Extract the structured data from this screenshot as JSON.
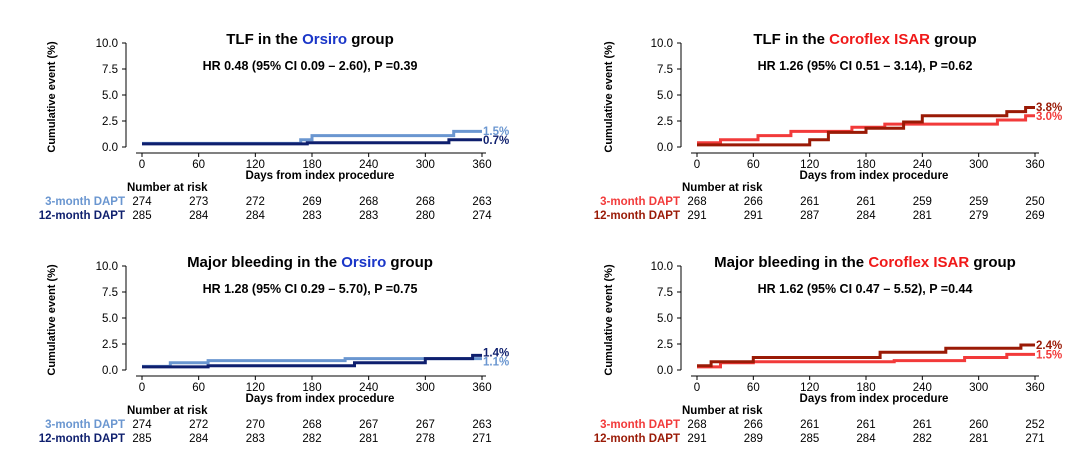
{
  "colors": {
    "orsiro_3m": "#6a96d0",
    "orsiro_12m": "#0e1f6e",
    "orsiro_word": "#1a36c8",
    "coroflex_3m": "#f23a3a",
    "coroflex_12m": "#9a1a06",
    "coroflex_word": "#f01818"
  },
  "shared": {
    "ylabel": "Cumulative event (%)",
    "xlabel": "Days from index procedure",
    "risk_header": "Number at risk",
    "label_3m": "3-month DAPT",
    "label_12m": "12-month DAPT"
  },
  "panels": [
    {
      "id": "tlf-orsiro",
      "title_pre": "TLF in the ",
      "title_colored": "Orsiro",
      "title_post": " group",
      "stat": "HR 0.48 (95% CI 0.09 – 2.60), P =0.39",
      "risk_3m": [
        "274",
        "273",
        "272",
        "269",
        "268",
        "268",
        "263"
      ],
      "risk_12m": [
        "285",
        "284",
        "284",
        "283",
        "283",
        "280",
        "274"
      ]
    },
    {
      "id": "tlf-coroflex",
      "title_pre": "TLF in the ",
      "title_colored": "Coroflex ISAR",
      "title_post": " group",
      "stat": "HR 1.26 (95% CI 0.51 – 3.14), P =0.62",
      "risk_3m": [
        "268",
        "266",
        "261",
        "261",
        "259",
        "259",
        "250"
      ],
      "risk_12m": [
        "291",
        "291",
        "287",
        "284",
        "281",
        "279",
        "269"
      ]
    },
    {
      "id": "bleeding-orsiro",
      "title_pre": "Major bleeding in the ",
      "title_colored": "Orsiro",
      "title_post": " group",
      "stat": "HR 1.28 (95% CI 0.29 – 5.70), P =0.75",
      "risk_3m": [
        "274",
        "272",
        "270",
        "268",
        "267",
        "267",
        "263"
      ],
      "risk_12m": [
        "285",
        "284",
        "283",
        "282",
        "281",
        "278",
        "271"
      ]
    },
    {
      "id": "bleeding-coroflex",
      "title_pre": "Major bleeding in the ",
      "title_colored": "Coroflex ISAR",
      "title_post": " group",
      "stat": "HR 1.62 (95% CI 0.47 – 5.52), P =0.44",
      "risk_3m": [
        "268",
        "266",
        "261",
        "261",
        "261",
        "260",
        "252"
      ],
      "risk_12m": [
        "291",
        "289",
        "285",
        "284",
        "282",
        "281",
        "271"
      ]
    }
  ],
  "chart_data": [
    {
      "type": "line",
      "title": "TLF in the Orsiro group",
      "xlabel": "Days from index procedure",
      "ylabel": "Cumulative event (%)",
      "xlim": [
        0,
        360
      ],
      "ylim": [
        0,
        10
      ],
      "x_ticks": [
        "0",
        "60",
        "120",
        "180",
        "240",
        "300",
        "360"
      ],
      "y_ticks": [
        "0.0",
        "2.5",
        "5.0",
        "7.5",
        "10.0"
      ],
      "series": [
        {
          "name": "3-month DAPT",
          "color": "#6a96d0",
          "end_label": "1.5%",
          "x": [
            0,
            168,
            180,
            330,
            360
          ],
          "y": [
            0.35,
            0.7,
            1.1,
            1.5,
            1.5
          ]
        },
        {
          "name": "12-month DAPT",
          "color": "#0e1f6e",
          "end_label": "0.7%",
          "x": [
            0,
            175,
            325,
            360
          ],
          "y": [
            0.3,
            0.4,
            0.7,
            0.7
          ]
        }
      ]
    },
    {
      "type": "line",
      "title": "TLF in the Coroflex ISAR group",
      "xlabel": "Days from index procedure",
      "ylabel": "Cumulative event (%)",
      "xlim": [
        0,
        360
      ],
      "ylim": [
        0,
        10
      ],
      "x_ticks": [
        "0",
        "60",
        "120",
        "180",
        "240",
        "300",
        "360"
      ],
      "y_ticks": [
        "0.0",
        "2.5",
        "5.0",
        "7.5",
        "10.0"
      ],
      "series": [
        {
          "name": "3-month DAPT",
          "color": "#f23a3a",
          "end_label": "3.0%",
          "x": [
            0,
            25,
            65,
            100,
            165,
            200,
            320,
            350,
            360
          ],
          "y": [
            0.4,
            0.7,
            1.1,
            1.5,
            1.9,
            2.2,
            2.6,
            3.0,
            3.0
          ]
        },
        {
          "name": "12-month DAPT",
          "color": "#9a1a06",
          "end_label": "3.8%",
          "x": [
            0,
            120,
            140,
            180,
            220,
            240,
            330,
            350,
            360
          ],
          "y": [
            0.2,
            0.7,
            1.4,
            1.8,
            2.4,
            3.0,
            3.4,
            3.8,
            3.8
          ]
        }
      ]
    },
    {
      "type": "line",
      "title": "Major bleeding in the Orsiro group",
      "xlabel": "Days from index procedure",
      "ylabel": "Cumulative event (%)",
      "xlim": [
        0,
        360
      ],
      "ylim": [
        0,
        10
      ],
      "x_ticks": [
        "0",
        "60",
        "120",
        "180",
        "240",
        "300",
        "360"
      ],
      "y_ticks": [
        "0.0",
        "2.5",
        "5.0",
        "7.5",
        "10.0"
      ],
      "series": [
        {
          "name": "3-month DAPT",
          "color": "#6a96d0",
          "end_label": "1.1%",
          "x": [
            0,
            30,
            70,
            215,
            300,
            345,
            360
          ],
          "y": [
            0.35,
            0.7,
            0.9,
            1.1,
            1.1,
            1.1,
            1.1
          ]
        },
        {
          "name": "12-month DAPT",
          "color": "#0e1f6e",
          "end_label": "1.4%",
          "x": [
            0,
            70,
            225,
            300,
            350,
            360
          ],
          "y": [
            0.3,
            0.4,
            0.7,
            1.1,
            1.4,
            1.4
          ]
        }
      ]
    },
    {
      "type": "line",
      "title": "Major bleeding in the Coroflex ISAR group",
      "xlabel": "Days from index procedure",
      "ylabel": "Cumulative event (%)",
      "xlim": [
        0,
        360
      ],
      "ylim": [
        0,
        10
      ],
      "x_ticks": [
        "0",
        "60",
        "120",
        "180",
        "240",
        "300",
        "360"
      ],
      "y_ticks": [
        "0.0",
        "2.5",
        "5.0",
        "7.5",
        "10.0"
      ],
      "series": [
        {
          "name": "3-month DAPT",
          "color": "#f23a3a",
          "end_label": "1.5%",
          "x": [
            0,
            25,
            60,
            210,
            285,
            330,
            360
          ],
          "y": [
            0.3,
            0.7,
            0.8,
            0.9,
            1.2,
            1.5,
            1.5
          ]
        },
        {
          "name": "12-month DAPT",
          "color": "#9a1a06",
          "end_label": "2.4%",
          "x": [
            0,
            15,
            60,
            195,
            265,
            345,
            360
          ],
          "y": [
            0.4,
            0.8,
            1.2,
            1.7,
            2.1,
            2.4,
            2.4
          ]
        }
      ]
    }
  ]
}
